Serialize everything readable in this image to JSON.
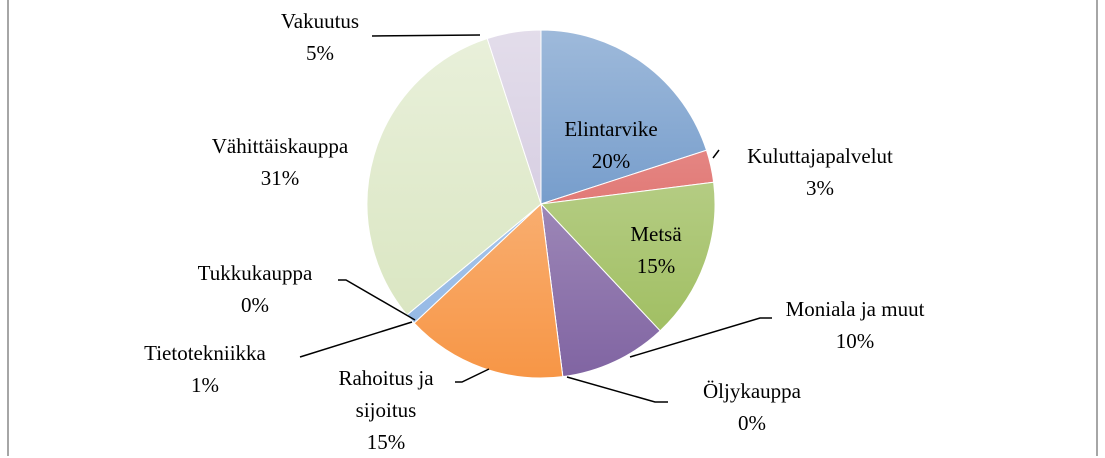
{
  "chart_data": {
    "type": "pie",
    "categories": [
      "Elintarvike",
      "Kuluttajapalvelut",
      "Metsä",
      "Moniala ja muut",
      "Öljykauppa",
      "Rahoitus ja sijoitus",
      "Tietotekniikka",
      "Tukkukauppa",
      "Vähittäiskauppa",
      "Vakuutus"
    ],
    "values": [
      20,
      3,
      15,
      10,
      0,
      15,
      1,
      0,
      31,
      5
    ],
    "value_labels": [
      "20%",
      "3%",
      "15%",
      "10%",
      "0%",
      "15%",
      "1%",
      "0%",
      "31%",
      "5%"
    ],
    "colors": [
      "#4f81bd",
      "#d9534f",
      "#9bbb59",
      "#8064a2",
      "#4bacc6",
      "#f79646",
      "#8eb4e3",
      "#e6a0a0",
      "#d7e4bd",
      "#ccc1da"
    ]
  }
}
